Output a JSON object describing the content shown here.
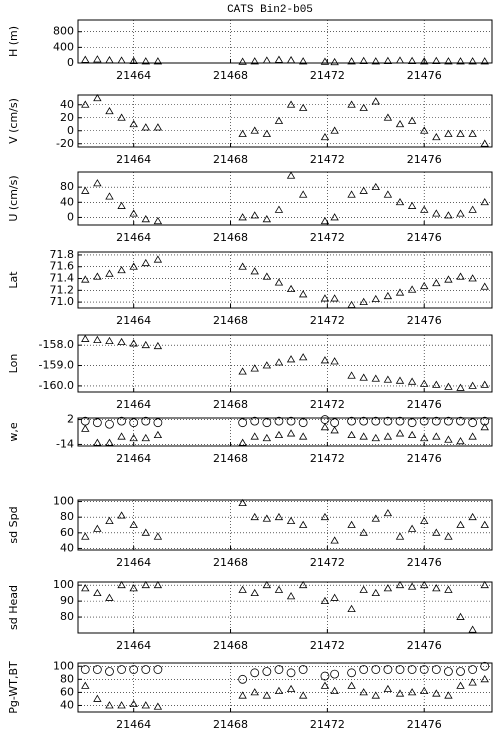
{
  "chart_data": [
    {
      "type": "scatter",
      "title": "CATS Bin2-b05",
      "ylabel": "H (m)",
      "x": [
        21462.0,
        21462.5,
        21463.0,
        21463.5,
        21464.0,
        21464.5,
        21465.0,
        21468.5,
        21469.0,
        21469.5,
        21470.0,
        21470.5,
        21471.0,
        21471.9,
        21472.3,
        21473.0,
        21473.5,
        21474.0,
        21474.5,
        21475.0,
        21475.5,
        21476.0,
        21476.5,
        21477.0,
        21477.5,
        21478.0,
        21478.5
      ],
      "xlim": [
        21461.7,
        21478.8
      ],
      "xticks": [
        21464,
        21468,
        21472,
        21476
      ],
      "ylim": [
        0,
        1100
      ],
      "yticks": [
        0,
        400,
        800
      ],
      "grid": true,
      "series": [
        {
          "marker": "triangle",
          "color": "#000000",
          "values": [
            80,
            90,
            70,
            60,
            50,
            40,
            40,
            30,
            40,
            60,
            80,
            70,
            40,
            30,
            20,
            40,
            50,
            40,
            50,
            60,
            50,
            40,
            50,
            40,
            40,
            40,
            40
          ]
        }
      ]
    },
    {
      "type": "scatter",
      "ylabel": "V (cm/s)",
      "x": [
        21462.0,
        21462.5,
        21463.0,
        21463.5,
        21464.0,
        21464.5,
        21465.0,
        21468.5,
        21469.0,
        21469.5,
        21470.0,
        21470.5,
        21471.0,
        21471.9,
        21472.3,
        21473.0,
        21473.5,
        21474.0,
        21474.5,
        21475.0,
        21475.5,
        21476.0,
        21476.5,
        21477.0,
        21477.5,
        21478.0,
        21478.5
      ],
      "xlim": [
        21461.7,
        21478.8
      ],
      "xticks": [
        21464,
        21468,
        21472,
        21476
      ],
      "ylim": [
        -25,
        55
      ],
      "yticks": [
        -20,
        0,
        20,
        40
      ],
      "grid": true,
      "series": [
        {
          "marker": "triangle",
          "color": "#000000",
          "values": [
            40,
            50,
            30,
            20,
            10,
            5,
            5,
            -5,
            0,
            -5,
            15,
            40,
            35,
            -10,
            0,
            40,
            35,
            45,
            20,
            10,
            15,
            0,
            -10,
            -5,
            -5,
            -5,
            -20
          ]
        }
      ]
    },
    {
      "type": "scatter",
      "ylabel": "U (cm/s)",
      "x": [
        21462.0,
        21462.5,
        21463.0,
        21463.5,
        21464.0,
        21464.5,
        21465.0,
        21468.5,
        21469.0,
        21469.5,
        21470.0,
        21470.5,
        21471.0,
        21471.9,
        21472.3,
        21473.0,
        21473.5,
        21474.0,
        21474.5,
        21475.0,
        21475.5,
        21476.0,
        21476.5,
        21477.0,
        21477.5,
        21478.0,
        21478.5
      ],
      "xlim": [
        21461.7,
        21478.8
      ],
      "xticks": [
        21464,
        21468,
        21472,
        21476
      ],
      "ylim": [
        -20,
        120
      ],
      "yticks": [
        0,
        40,
        80
      ],
      "grid": true,
      "series": [
        {
          "marker": "triangle",
          "color": "#000000",
          "values": [
            70,
            90,
            55,
            30,
            10,
            -5,
            -10,
            0,
            5,
            -5,
            20,
            110,
            60,
            -10,
            0,
            60,
            70,
            80,
            60,
            40,
            30,
            20,
            10,
            5,
            10,
            20,
            40
          ]
        }
      ]
    },
    {
      "type": "scatter",
      "ylabel": "Lat",
      "x": [
        21462.0,
        21462.5,
        21463.0,
        21463.5,
        21464.0,
        21464.5,
        21465.0,
        21468.5,
        21469.0,
        21469.5,
        21470.0,
        21470.5,
        21471.0,
        21471.9,
        21472.3,
        21473.0,
        21473.5,
        21474.0,
        21474.5,
        21475.0,
        21475.5,
        21476.0,
        21476.5,
        21477.0,
        21477.5,
        21478.0,
        21478.5
      ],
      "xlim": [
        21461.7,
        21478.8
      ],
      "xticks": [
        21464,
        21468,
        21472,
        21476
      ],
      "ylim": [
        70.9,
        71.85
      ],
      "yticks": [
        {
          "value": 71,
          "label": "71.0"
        },
        71.2,
        71.4,
        71.6,
        71.8
      ],
      "grid": true,
      "series": [
        {
          "marker": "triangle",
          "color": "#000000",
          "values": [
            71.38,
            71.43,
            71.48,
            71.54,
            71.6,
            71.66,
            71.72,
            71.6,
            71.52,
            71.43,
            71.33,
            71.22,
            71.13,
            71.06,
            71.06,
            70.95,
            71,
            71.05,
            71.1,
            71.16,
            71.21,
            71.27,
            71.32,
            71.38,
            71.43,
            71.4,
            71.26
          ]
        }
      ]
    },
    {
      "type": "scatter",
      "ylabel": "Lon",
      "x": [
        21462.0,
        21462.5,
        21463.0,
        21463.5,
        21464.0,
        21464.5,
        21465.0,
        21468.5,
        21469.0,
        21469.5,
        21470.0,
        21470.5,
        21471.0,
        21471.9,
        21472.3,
        21473.0,
        21473.5,
        21474.0,
        21474.5,
        21475.0,
        21475.5,
        21476.0,
        21476.5,
        21477.0,
        21477.5,
        21478.0,
        21478.5
      ],
      "xlim": [
        21461.7,
        21478.8
      ],
      "xticks": [
        21464,
        21468,
        21472,
        21476
      ],
      "ylim": [
        -160.3,
        -157.5
      ],
      "yticks": [
        {
          "value": -160,
          "label": "-160.0"
        },
        {
          "value": -159,
          "label": "-159.0"
        },
        {
          "value": -158,
          "label": "-158.0"
        }
      ],
      "grid": true,
      "series": [
        {
          "marker": "triangle",
          "color": "#000000",
          "values": [
            -157.7,
            -157.75,
            -157.8,
            -157.85,
            -157.92,
            -158,
            -158.05,
            -159.3,
            -159.15,
            -159,
            -158.85,
            -158.7,
            -158.6,
            -158.75,
            -158.8,
            -159.5,
            -159.6,
            -159.65,
            -159.7,
            -159.75,
            -159.8,
            -159.9,
            -159.95,
            -160.05,
            -160.1,
            -160,
            -159.95
          ]
        }
      ]
    },
    {
      "type": "scatter",
      "ylabel": "w,e",
      "x": [
        21462.0,
        21462.5,
        21463.0,
        21463.5,
        21464.0,
        21464.5,
        21465.0,
        21468.5,
        21469.0,
        21469.5,
        21470.0,
        21470.5,
        21471.0,
        21471.9,
        21472.3,
        21473.0,
        21473.5,
        21474.0,
        21474.5,
        21475.0,
        21475.5,
        21476.0,
        21476.5,
        21477.0,
        21477.5,
        21478.0,
        21478.5
      ],
      "xlim": [
        21461.7,
        21478.8
      ],
      "xticks": [
        21464,
        21468,
        21472,
        21476
      ],
      "ylim": [
        -15,
        3
      ],
      "yticks": [
        -14,
        2
      ],
      "grid": true,
      "series": [
        {
          "marker": "circle",
          "color": "#000000",
          "values": [
            1,
            0,
            -1,
            1,
            0,
            1,
            0,
            0,
            1,
            0,
            1,
            1,
            0,
            2,
            0,
            1,
            1,
            1,
            1,
            1,
            0,
            1,
            1,
            1,
            1,
            0,
            1
          ]
        },
        {
          "marker": "triangle",
          "color": "#000000",
          "values": [
            -4,
            -13,
            -13,
            -9,
            -10,
            -10,
            -8,
            -13,
            -9,
            -10,
            -8,
            -7,
            -9,
            -3,
            -5,
            -8,
            -9,
            -10,
            -9,
            -7,
            -8,
            -10,
            -9,
            -11,
            -12,
            -9,
            -3
          ]
        }
      ]
    },
    {
      "type": "scatter",
      "ylabel": "sd Spd",
      "x": [
        21462.0,
        21462.5,
        21463.0,
        21463.5,
        21464.0,
        21464.5,
        21465.0,
        21468.5,
        21469.0,
        21469.5,
        21470.0,
        21470.5,
        21471.0,
        21471.9,
        21472.3,
        21473.0,
        21473.5,
        21474.0,
        21474.5,
        21475.0,
        21475.5,
        21476.0,
        21476.5,
        21477.0,
        21477.5,
        21478.0,
        21478.5
      ],
      "xlim": [
        21461.7,
        21478.8
      ],
      "xticks": [
        21464,
        21468,
        21472,
        21476
      ],
      "ylim": [
        38,
        102
      ],
      "yticks": [
        40,
        60,
        80,
        100
      ],
      "grid": true,
      "series": [
        {
          "marker": "triangle",
          "color": "#000000",
          "values": [
            55,
            65,
            75,
            82,
            70,
            60,
            55,
            98,
            80,
            78,
            80,
            75,
            70,
            80,
            50,
            70,
            60,
            78,
            85,
            55,
            65,
            75,
            60,
            55,
            70,
            80,
            70
          ]
        }
      ]
    },
    {
      "type": "scatter",
      "ylabel": "sd Head",
      "x": [
        21462.0,
        21462.5,
        21463.0,
        21463.5,
        21464.0,
        21464.5,
        21465.0,
        21468.5,
        21469.0,
        21469.5,
        21470.0,
        21470.5,
        21471.0,
        21471.9,
        21472.3,
        21473.0,
        21473.5,
        21474.0,
        21474.5,
        21475.0,
        21475.5,
        21476.0,
        21476.5,
        21477.0,
        21477.5,
        21478.0,
        21478.5
      ],
      "xlim": [
        21461.7,
        21478.8
      ],
      "xticks": [
        21464,
        21468,
        21472,
        21476
      ],
      "ylim": [
        70,
        102
      ],
      "yticks": [
        80,
        90,
        100
      ],
      "grid": true,
      "series": [
        {
          "marker": "triangle",
          "color": "#000000",
          "values": [
            98,
            95,
            92,
            100,
            98,
            100,
            100,
            97,
            95,
            100,
            97,
            93,
            100,
            90,
            92,
            85,
            97,
            95,
            98,
            100,
            99,
            100,
            98,
            97,
            80,
            72,
            100
          ]
        }
      ]
    },
    {
      "type": "scatter",
      "ylabel": "Pg-WT,BT",
      "x": [
        21462.0,
        21462.5,
        21463.0,
        21463.5,
        21464.0,
        21464.5,
        21465.0,
        21468.5,
        21469.0,
        21469.5,
        21470.0,
        21470.5,
        21471.0,
        21471.9,
        21472.3,
        21473.0,
        21473.5,
        21474.0,
        21474.5,
        21475.0,
        21475.5,
        21476.0,
        21476.5,
        21477.0,
        21477.5,
        21478.0,
        21478.5
      ],
      "xlim": [
        21461.7,
        21478.8
      ],
      "xticks": [
        21464,
        21468,
        21472,
        21476
      ],
      "ylim": [
        30,
        105
      ],
      "yticks": [
        40,
        60,
        80,
        100
      ],
      "grid": true,
      "series": [
        {
          "marker": "circle",
          "color": "#000000",
          "values": [
            95,
            95,
            92,
            95,
            95,
            95,
            95,
            80,
            90,
            92,
            95,
            90,
            95,
            85,
            88,
            90,
            95,
            95,
            95,
            95,
            95,
            95,
            95,
            92,
            92,
            95,
            100
          ]
        },
        {
          "marker": "triangle",
          "color": "#000000",
          "values": [
            70,
            50,
            40,
            40,
            42,
            40,
            38,
            55,
            60,
            55,
            62,
            65,
            55,
            70,
            62,
            70,
            60,
            55,
            65,
            58,
            60,
            62,
            58,
            55,
            70,
            75,
            80
          ]
        }
      ]
    }
  ]
}
